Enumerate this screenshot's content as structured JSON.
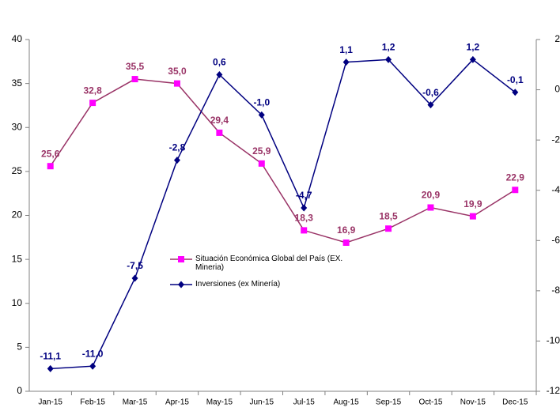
{
  "chart_data": {
    "type": "line",
    "categories": [
      "Jan-15",
      "Feb-15",
      "Mar-15",
      "Apr-15",
      "May-15",
      "Jun-15",
      "Jul-15",
      "Aug-15",
      "Sep-15",
      "Oct-15",
      "Nov-15",
      "Dec-15"
    ],
    "series": [
      {
        "name": "Situación Económica Global del País (EX. Mineria)",
        "color": "#993366",
        "marker_color": "#ff00ff",
        "marker": "square",
        "values": [
          25.6,
          32.8,
          35.5,
          35.0,
          29.4,
          25.9,
          18.3,
          16.9,
          18.5,
          20.9,
          19.9,
          22.9
        ],
        "value_labels": [
          "25,6",
          "32,8",
          "35,5",
          "35,0",
          "29,4",
          "25,9",
          "18,3",
          "16,9",
          "18,5",
          "20,9",
          "19,9",
          "22,9"
        ]
      },
      {
        "name": "Inversiones (ex Minería)",
        "color": "#000080",
        "marker_color": "#000080",
        "marker": "diamond",
        "axis": "y2",
        "values": [
          -11.1,
          -11.0,
          -7.5,
          -2.8,
          0.6,
          -1.0,
          -4.7,
          1.1,
          1.2,
          -0.6,
          1.2,
          -0.1
        ],
        "value_labels": [
          "-11,1",
          "-11,0",
          "-7,5",
          "-2,8",
          "0,6",
          "-1,0",
          "-4,7",
          "1,1",
          "1,2",
          "-0,6",
          "1,2",
          "-0,1"
        ]
      }
    ],
    "ylim": [
      0,
      40
    ],
    "yticks": [
      0,
      5,
      10,
      15,
      20,
      25,
      30,
      35,
      40
    ],
    "y2lim": [
      -12,
      2
    ],
    "y2ticks": [
      -12,
      -10,
      -8,
      -6,
      -4,
      -2,
      0,
      2
    ],
    "grid": false,
    "legend": "center"
  }
}
